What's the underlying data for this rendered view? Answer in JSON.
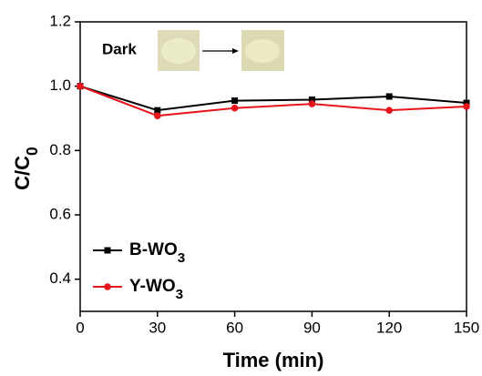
{
  "chart_data": {
    "type": "line",
    "x_label": "Time (min)",
    "y_label": "C/C0",
    "annotation": "Dark",
    "x": [
      0,
      30,
      60,
      90,
      120,
      150
    ],
    "series": [
      {
        "name": "B-WO3",
        "color": "#000000",
        "marker": "square",
        "values": [
          1.0,
          0.925,
          0.955,
          0.958,
          0.968,
          0.948
        ]
      },
      {
        "name": "Y-WO3",
        "color": "#e8141c",
        "marker": "circle",
        "values": [
          1.0,
          0.908,
          0.932,
          0.945,
          0.925,
          0.937
        ]
      }
    ],
    "xlim": [
      0,
      150
    ],
    "xticks": [
      0,
      30,
      60,
      90,
      120,
      150
    ],
    "ylim": [
      0.3,
      1.2
    ],
    "yticks": [
      0.4,
      0.6,
      0.8,
      {
        "value": 1.0,
        "label": "1.0"
      },
      1.2
    ],
    "legend": "lower left",
    "grid": false
  }
}
